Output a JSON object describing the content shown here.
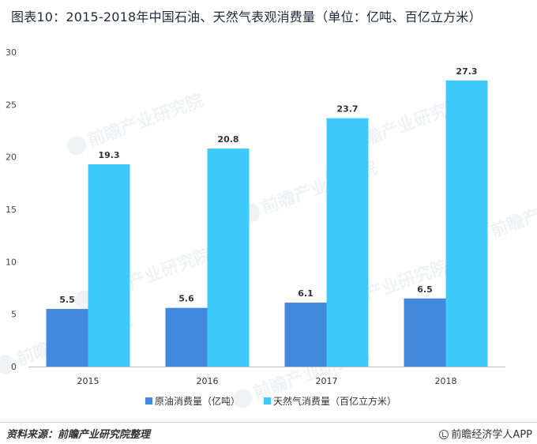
{
  "title": "图表10：2015-2018年中国石油、天然气表观消费量（单位：亿吨、百亿立方米）",
  "chart_data": {
    "type": "bar",
    "categories": [
      "2015",
      "2016",
      "2017",
      "2018"
    ],
    "series": [
      {
        "name": "原油消费量（亿吨）",
        "values": [
          5.5,
          5.6,
          6.1,
          6.5
        ],
        "color": "#4288dc"
      },
      {
        "name": "天然气消费量（百亿立方米）",
        "values": [
          19.3,
          20.8,
          23.7,
          27.3
        ],
        "color": "#3ecbfb"
      }
    ],
    "ylim": [
      0,
      30
    ],
    "yticks": [
      0,
      5,
      10,
      15,
      20,
      25,
      30
    ],
    "xlabel": "",
    "ylabel": "",
    "grid": false,
    "legend": "bottom"
  },
  "watermark": "前瞻产业研究院",
  "footer": {
    "source": "资料来源：前瞻产业研究院整理",
    "brand": "前瞻经济学人APP"
  }
}
